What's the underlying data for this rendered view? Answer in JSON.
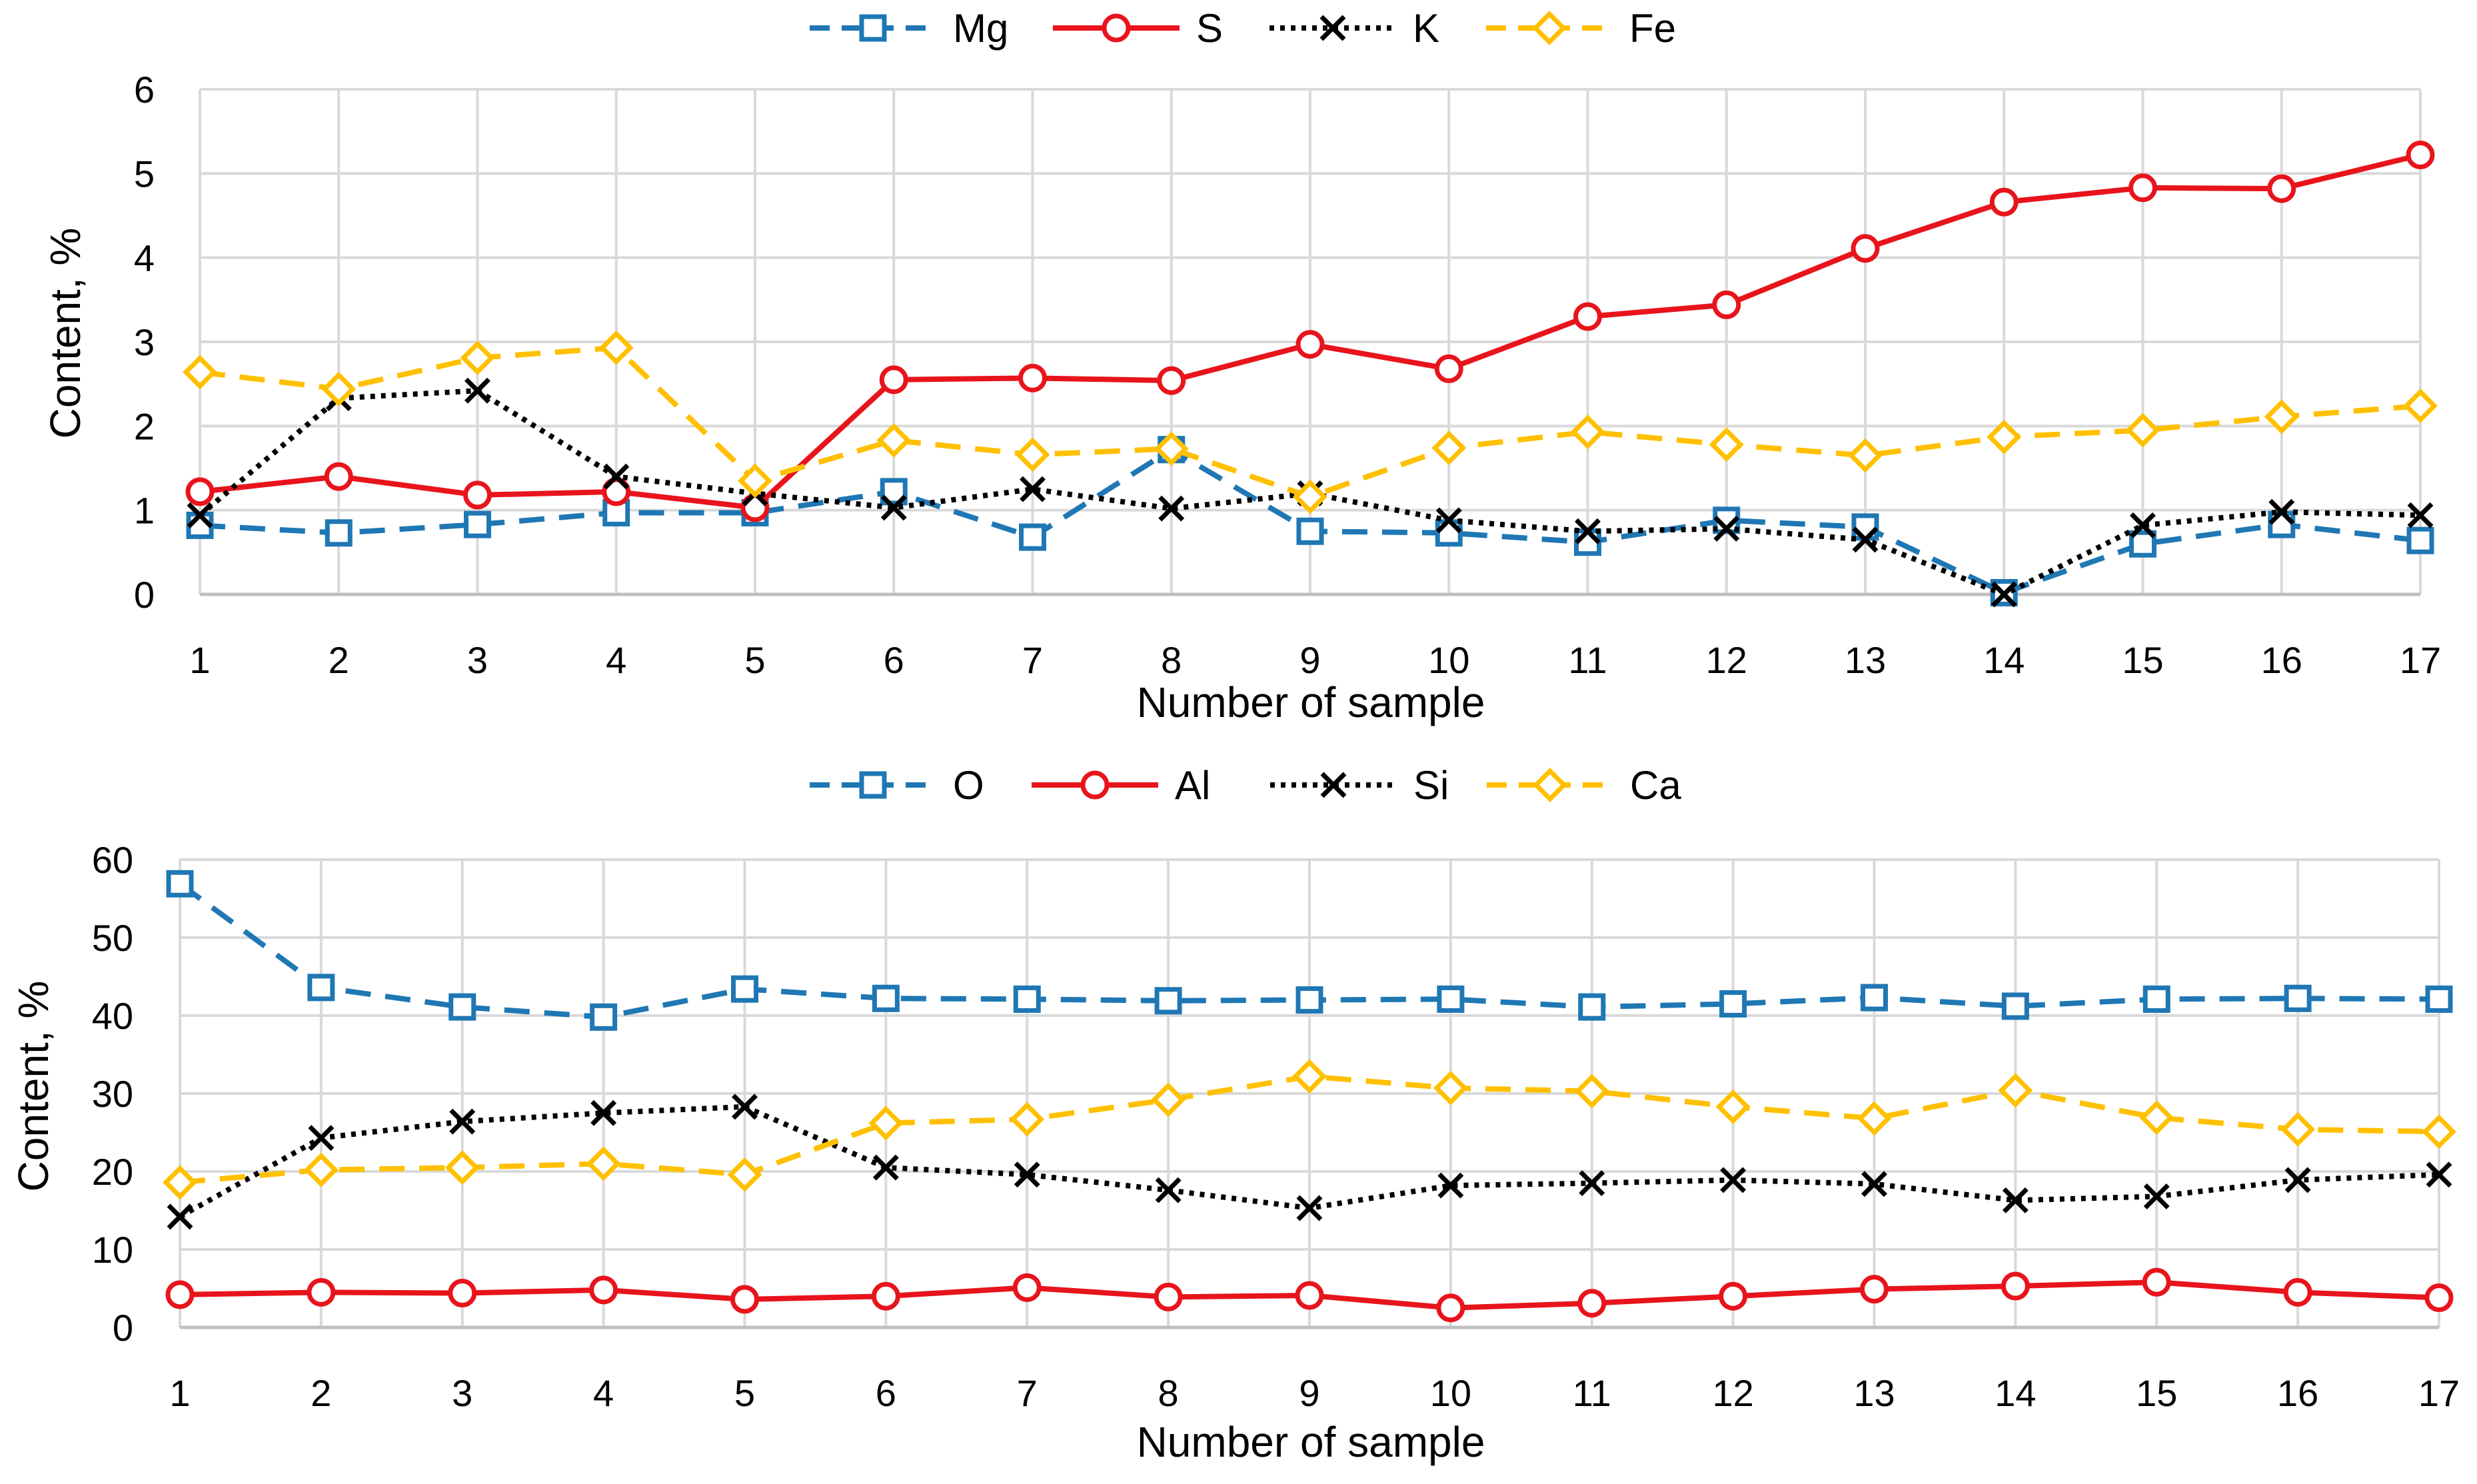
{
  "chart_data": [
    {
      "type": "line",
      "xlabel": "Number of sample",
      "ylabel": "Content, %",
      "ylim": [
        0,
        6
      ],
      "yticks": [
        0,
        1,
        2,
        3,
        4,
        5,
        6
      ],
      "grid": true,
      "legend_position": "top",
      "x": [
        1,
        2,
        3,
        4,
        5,
        6,
        7,
        8,
        9,
        10,
        11,
        12,
        13,
        14,
        15,
        16,
        17
      ],
      "series": [
        {
          "name": "Mg",
          "color": "#1F77B4",
          "line": "dashed",
          "marker": "square",
          "values": [
            0.82,
            0.73,
            0.83,
            0.97,
            0.97,
            1.22,
            0.68,
            1.72,
            0.75,
            0.73,
            0.62,
            0.88,
            0.8,
            0.02,
            0.6,
            0.83,
            0.64
          ]
        },
        {
          "name": "S",
          "color": "#E8141C",
          "line": "solid",
          "marker": "circle",
          "values": [
            1.22,
            1.4,
            1.18,
            1.22,
            1.03,
            2.55,
            2.57,
            2.54,
            2.97,
            2.68,
            3.3,
            3.44,
            4.11,
            4.66,
            4.83,
            4.82,
            5.22
          ]
        },
        {
          "name": "K",
          "color": "#000000",
          "line": "dotted",
          "marker": "x",
          "values": [
            0.94,
            2.33,
            2.42,
            1.4,
            1.2,
            1.03,
            1.25,
            1.02,
            1.2,
            0.88,
            0.75,
            0.78,
            0.65,
            0.0,
            0.82,
            0.98,
            0.94
          ]
        },
        {
          "name": "Fe",
          "color": "#FFC000",
          "line": "dashed",
          "marker": "diamond",
          "values": [
            2.64,
            2.44,
            2.81,
            2.93,
            1.35,
            1.83,
            1.66,
            1.73,
            1.16,
            1.74,
            1.93,
            1.78,
            1.65,
            1.87,
            1.95,
            2.11,
            2.24
          ]
        }
      ]
    },
    {
      "type": "line",
      "xlabel": "Number of sample",
      "ylabel": "Content, %",
      "ylim": [
        0,
        60
      ],
      "yticks": [
        0,
        10,
        20,
        30,
        40,
        50,
        60
      ],
      "grid": true,
      "legend_position": "top",
      "x": [
        1,
        2,
        3,
        4,
        5,
        6,
        7,
        8,
        9,
        10,
        11,
        12,
        13,
        14,
        15,
        16,
        17
      ],
      "series": [
        {
          "name": "O",
          "color": "#1F77B4",
          "line": "dashed",
          "marker": "square",
          "values": [
            56.9,
            43.6,
            41.1,
            39.8,
            43.4,
            42.2,
            42.1,
            41.9,
            42.0,
            42.1,
            41.1,
            41.5,
            42.3,
            41.2,
            42.1,
            42.2,
            42.1
          ]
        },
        {
          "name": "Al",
          "color": "#E8141C",
          "line": "solid",
          "marker": "circle",
          "values": [
            4.2,
            4.5,
            4.4,
            4.8,
            3.6,
            4.0,
            5.1,
            3.9,
            4.1,
            2.5,
            3.1,
            4.0,
            4.9,
            5.3,
            5.8,
            4.5,
            3.8
          ]
        },
        {
          "name": "Si",
          "color": "#000000",
          "line": "dotted",
          "marker": "x",
          "values": [
            14.2,
            24.3,
            26.4,
            27.5,
            28.3,
            20.5,
            19.6,
            17.6,
            15.3,
            18.2,
            18.5,
            18.9,
            18.4,
            16.3,
            16.8,
            18.9,
            19.6
          ]
        },
        {
          "name": "Ca",
          "color": "#FFC000",
          "line": "dashed",
          "marker": "diamond",
          "values": [
            18.6,
            20.2,
            20.5,
            21.0,
            19.6,
            26.2,
            26.7,
            29.2,
            32.2,
            30.7,
            30.3,
            28.3,
            26.8,
            30.4,
            26.9,
            25.4,
            25.1
          ]
        }
      ]
    }
  ]
}
